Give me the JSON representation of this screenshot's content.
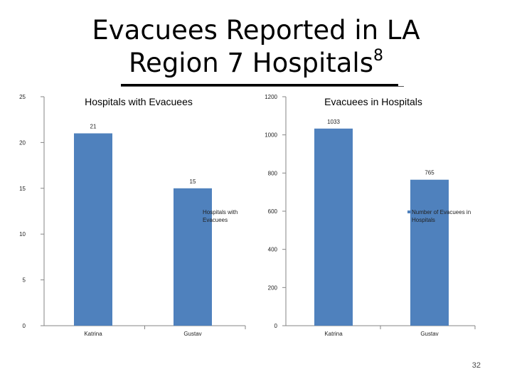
{
  "slide": {
    "title_line1": "Evacuees Reported in LA",
    "title_line2": "Region 7 Hospitals",
    "title_superscript": "8",
    "page_number": "32"
  },
  "colors": {
    "bar": "#4F81BD",
    "axis": "#868686"
  },
  "chart_data": [
    {
      "type": "bar",
      "title": "Hospitals with Evacuees",
      "categories": [
        "Katrina",
        "Gustav"
      ],
      "series": [
        {
          "name": "Hospitals with Evacuees",
          "values": [
            21,
            15
          ]
        }
      ],
      "data_labels": [
        "21",
        "15"
      ],
      "legend_lines": [
        "Hospitals with",
        "Evacuees"
      ],
      "legend": "right",
      "ylim": [
        0,
        25
      ],
      "yticks": [
        0,
        5,
        10,
        15,
        20,
        25
      ],
      "xlabel": "",
      "ylabel": ""
    },
    {
      "type": "bar",
      "title": "Evacuees in Hospitals",
      "categories": [
        "Katrina",
        "Gustav"
      ],
      "series": [
        {
          "name": "Number of Evacuees in Hospitals",
          "values": [
            1033,
            765
          ]
        }
      ],
      "data_labels": [
        "1033",
        "765"
      ],
      "legend_lines": [
        "Number of Evacuees in",
        "Hospitals"
      ],
      "legend": "right",
      "ylim": [
        0,
        1200
      ],
      "yticks": [
        0,
        200,
        400,
        600,
        800,
        1000,
        1200
      ],
      "xlabel": "",
      "ylabel": ""
    }
  ]
}
